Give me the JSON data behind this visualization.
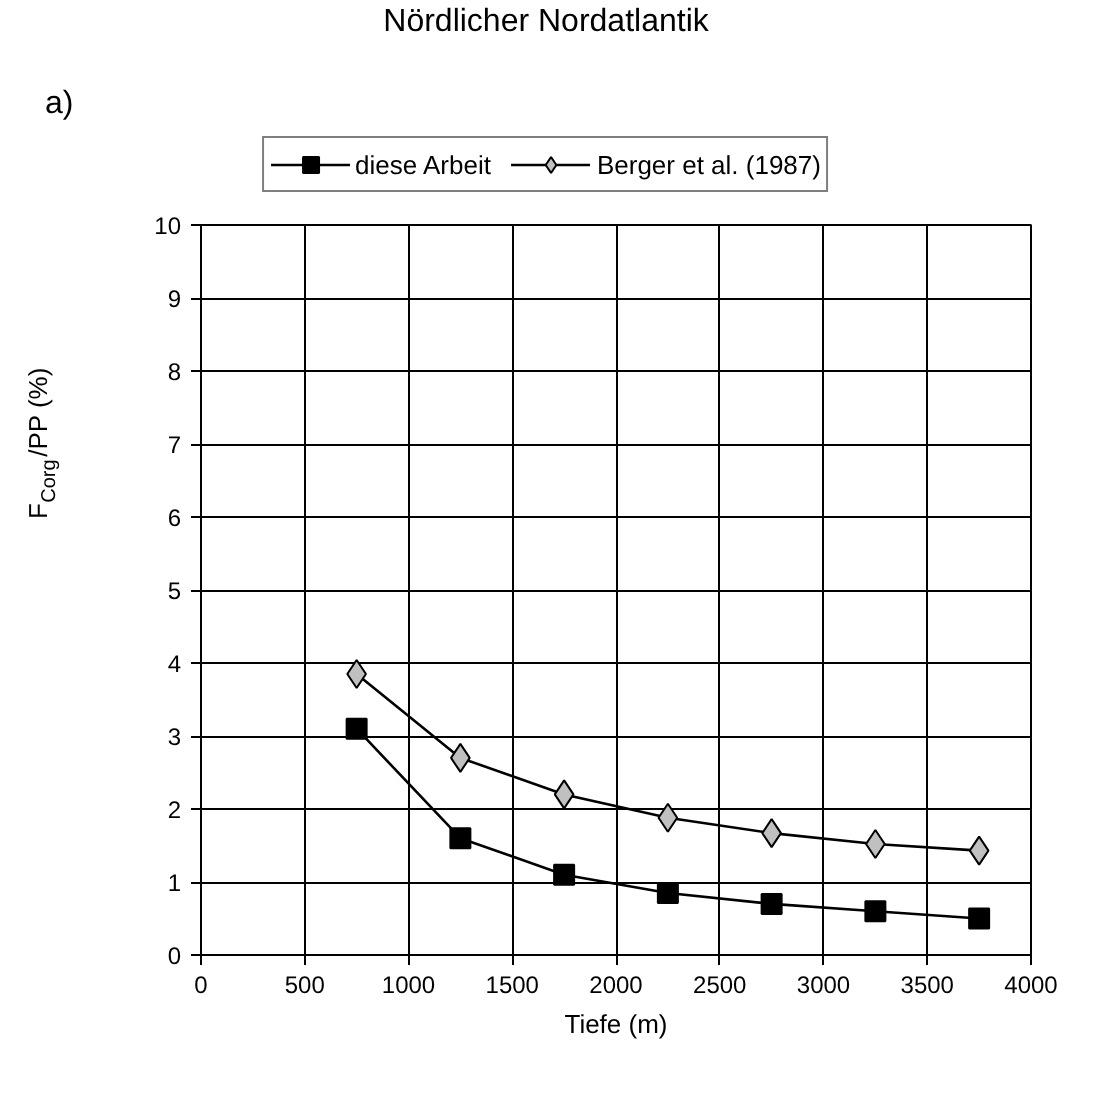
{
  "chart_data": {
    "type": "line",
    "title": "Nördlicher Nordatlantik",
    "xlabel": "Tiefe (m)",
    "ylabel": "F$_{Corg}$/PP (%)",
    "annotations": [
      "a)"
    ],
    "x": [
      750,
      1250,
      1750,
      2250,
      2750,
      3250,
      3750
    ],
    "series": [
      {
        "name": "diese Arbeit",
        "color": "#000000",
        "marker": "square",
        "values": [
          3.1,
          1.6,
          1.1,
          0.85,
          0.7,
          0.6,
          0.5
        ]
      },
      {
        "name": "Berger et al. (1987)",
        "color": "#c0c0c0",
        "marker": "diamond",
        "values": [
          3.85,
          2.7,
          2.2,
          1.88,
          1.67,
          1.52,
          1.43
        ]
      }
    ],
    "xlim": [
      0,
      4000
    ],
    "xticks": [
      0,
      500,
      1000,
      1500,
      2000,
      2500,
      3000,
      3500,
      4000
    ],
    "ylim": [
      0,
      10
    ],
    "yticks": [
      0,
      1,
      2,
      3,
      4,
      5,
      6,
      7,
      8,
      9,
      10
    ],
    "grid": true,
    "legend": "top",
    "line_style": "solid"
  }
}
